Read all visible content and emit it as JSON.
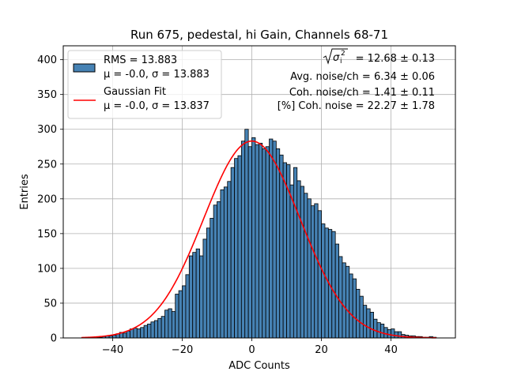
{
  "chart_data": {
    "type": "bar",
    "title": "Run 675, pedestal, hi Gain, Channels 68-71",
    "xlabel": "ADC Counts",
    "ylabel": "Entries",
    "xlim": [
      -54.2,
      58.5
    ],
    "ylim": [
      0,
      420
    ],
    "xticks": [
      -40,
      -20,
      0,
      20,
      40
    ],
    "yticks": [
      0,
      50,
      100,
      150,
      200,
      250,
      300,
      350,
      400
    ],
    "xtick_labels": [
      "−40",
      "−20",
      "0",
      "20",
      "40"
    ],
    "ytick_labels": [
      "0",
      "50",
      "100",
      "150",
      "200",
      "250",
      "300",
      "350",
      "400"
    ],
    "grid": true,
    "bar_color": "#4682b4",
    "fit_color": "#ff0000",
    "bin_start": -49,
    "bin_width": 1,
    "bin_values": [
      0,
      0,
      0,
      1,
      1,
      1,
      2,
      3,
      3,
      4,
      6,
      8,
      7,
      10,
      13,
      14,
      13,
      15,
      18,
      20,
      23,
      25,
      28,
      31,
      40,
      42,
      38,
      63,
      68,
      75,
      91,
      118,
      123,
      128,
      118,
      142,
      158,
      172,
      191,
      196,
      213,
      217,
      225,
      245,
      258,
      262,
      283,
      300,
      275,
      288,
      278,
      280,
      272,
      275,
      286,
      283,
      272,
      263,
      252,
      249,
      220,
      245,
      226,
      218,
      208,
      200,
      190,
      193,
      183,
      164,
      158,
      156,
      153,
      135,
      117,
      108,
      103,
      92,
      85,
      70,
      60,
      47,
      42,
      37,
      27,
      22,
      20,
      15,
      12,
      13,
      9,
      9,
      5,
      4,
      3,
      3,
      2,
      2,
      1,
      1,
      2,
      1,
      0
    ],
    "fit": {
      "mu": 0.0,
      "sigma": 13.837,
      "amplitude": 283,
      "x_range": [
        -49,
        53
      ]
    },
    "legend": [
      {
        "label": "RMS = 13.883",
        "sublabel": "μ = -0.0, σ = 13.883",
        "kind": "patch"
      },
      {
        "label": "Gaussian Fit",
        "sublabel": "μ = -0.0, σ = 13.837",
        "kind": "line"
      }
    ],
    "annotations": {
      "sqrt_sigma_label": "σ",
      "sqrt_sigma_sub": "i",
      "sqrt_sigma_sup": "2",
      "sqrt_value": " = 12.68 ± 0.13",
      "avg_noise": "Avg. noise/ch = 6.34 ± 0.06",
      "coh_noise": "Coh. noise/ch = 1.41 ± 0.11",
      "coh_pct": "[%] Coh. noise = 22.27 ± 1.78"
    }
  }
}
